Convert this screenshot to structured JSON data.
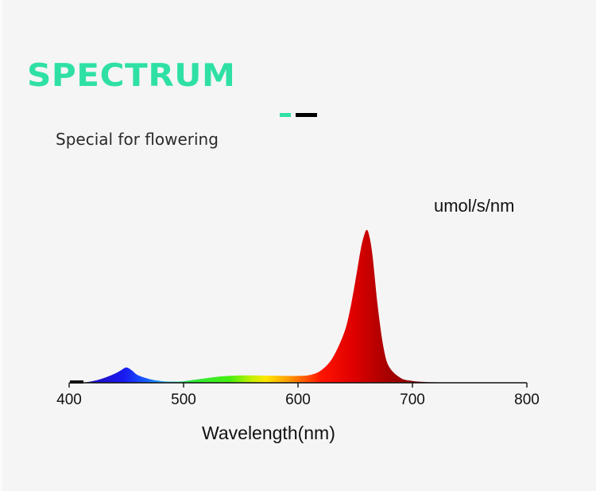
{
  "header": {
    "title": "SPECTRUM",
    "subtitle": "Special for flowering",
    "accent_colors": {
      "teal": "#2fe0a5",
      "black": "#000000"
    }
  },
  "chart_data": {
    "type": "area",
    "title": "SPECTRUM",
    "subtitle": "Special for flowering",
    "xlabel": "Wavelength(nm)",
    "ylabel": "umol/s/nm",
    "xlim": [
      400,
      800
    ],
    "x_ticks": [
      400,
      500,
      600,
      700,
      800
    ],
    "x_tick_labels": [
      "400",
      "500",
      "600",
      "700",
      "800"
    ],
    "grid": false,
    "legend": null,
    "y_units": "relative (normalized to red peak = 1.0)",
    "x": [
      400,
      410,
      420,
      430,
      440,
      445,
      450,
      455,
      460,
      470,
      480,
      490,
      500,
      510,
      520,
      530,
      540,
      550,
      560,
      570,
      580,
      590,
      600,
      610,
      620,
      630,
      640,
      645,
      650,
      655,
      658,
      660,
      662,
      665,
      670,
      675,
      680,
      690,
      700,
      710,
      720,
      730,
      740
    ],
    "values": [
      0.0,
      0.0,
      0.01,
      0.03,
      0.06,
      0.08,
      0.1,
      0.08,
      0.05,
      0.025,
      0.012,
      0.008,
      0.01,
      0.02,
      0.03,
      0.04,
      0.045,
      0.048,
      0.048,
      0.047,
      0.046,
      0.045,
      0.045,
      0.05,
      0.08,
      0.16,
      0.32,
      0.46,
      0.66,
      0.88,
      0.97,
      1.0,
      0.97,
      0.84,
      0.48,
      0.22,
      0.1,
      0.03,
      0.012,
      0.006,
      0.003,
      0.001,
      0.0
    ],
    "peaks": [
      {
        "wavelength_nm": 450,
        "relative": 0.1,
        "color": "blue"
      },
      {
        "wavelength_nm": 660,
        "relative": 1.0,
        "color": "red"
      }
    ]
  },
  "axis": {
    "unit_label": "umol/s/nm",
    "x_title": "Wavelength(nm)",
    "ticks": [
      "400",
      "500",
      "600",
      "700",
      "800"
    ]
  }
}
